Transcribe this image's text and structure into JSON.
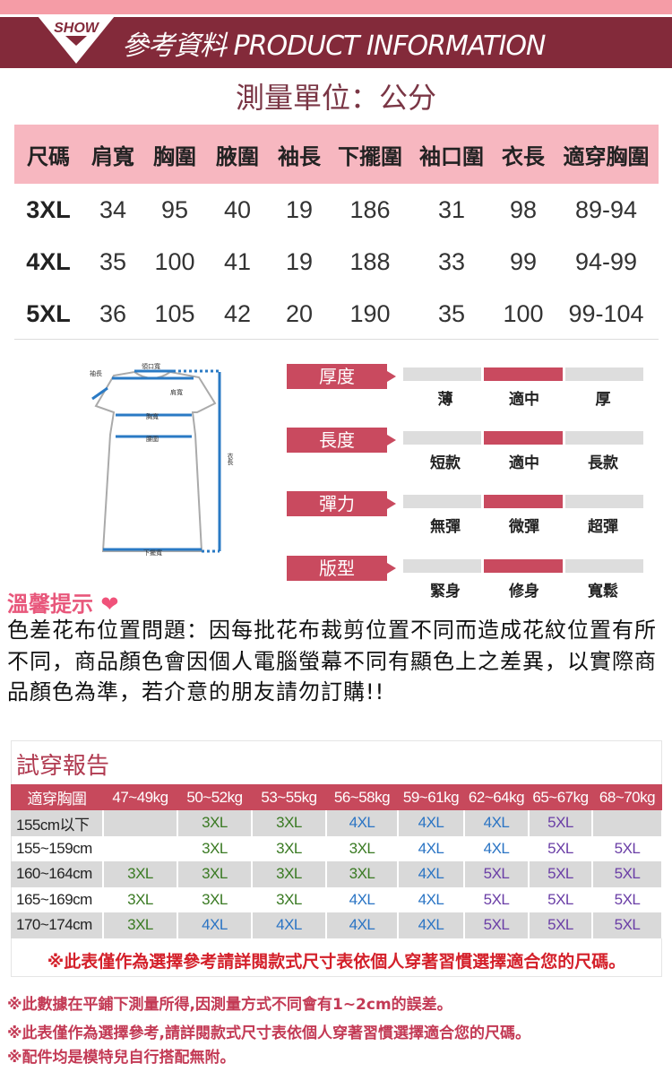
{
  "header": {
    "badge": "SHOW",
    "title": "參考資料 PRODUCT INFORMATION"
  },
  "unit": "測量單位：公分",
  "size_table": {
    "headers": [
      "尺碼",
      "肩寬",
      "胸圍",
      "腋圍",
      "袖長",
      "下擺圍",
      "袖口圍",
      "衣長",
      "適穿胸圍"
    ],
    "rows": [
      [
        "3XL",
        "34",
        "95",
        "40",
        "19",
        "186",
        "31",
        "98",
        "89-94"
      ],
      [
        "4XL",
        "35",
        "100",
        "41",
        "19",
        "188",
        "33",
        "99",
        "94-99"
      ],
      [
        "5XL",
        "36",
        "105",
        "42",
        "20",
        "190",
        "35",
        "100",
        "99-104"
      ]
    ]
  },
  "diagram": {
    "labels": {
      "sleeve": "袖長",
      "neck": "領口寬",
      "shoulder": "肩寬",
      "chest": "胸寬",
      "waist": "腰圍",
      "length": "衣長",
      "hem": "下擺寬"
    }
  },
  "features": [
    {
      "label": "厚度",
      "options": [
        "薄",
        "適中",
        "厚"
      ],
      "selected": 1
    },
    {
      "label": "長度",
      "options": [
        "短款",
        "適中",
        "長款"
      ],
      "selected": 1
    },
    {
      "label": "彈力",
      "options": [
        "無彈",
        "微彈",
        "超彈"
      ],
      "selected": 1
    },
    {
      "label": "版型",
      "options": [
        "緊身",
        "修身",
        "寬鬆"
      ],
      "selected": 1
    }
  ],
  "tips": {
    "title": "溫馨提示",
    "icon": "heart-icon",
    "text": "色差花布位置問題：因每批花布裁剪位置不同而造成花紋位置有所不同，商品顏色會因個人電腦螢幕不同有顯色上之差異，以實際商品顏色為準，若介意的朋友請勿訂購!!"
  },
  "try_report": {
    "title": "試穿報告",
    "headers": [
      "適穿胸圍",
      "47~49kg",
      "50~52kg",
      "53~55kg",
      "56~58kg",
      "59~61kg",
      "62~64kg",
      "65~67kg",
      "68~70kg"
    ],
    "rows": [
      [
        "155cm以下",
        "",
        "3XL",
        "3XL",
        "4XL",
        "4XL",
        "4XL",
        "5XL",
        ""
      ],
      [
        "155~159cm",
        "",
        "3XL",
        "3XL",
        "3XL",
        "4XL",
        "4XL",
        "5XL",
        "5XL"
      ],
      [
        "160~164cm",
        "3XL",
        "3XL",
        "3XL",
        "3XL",
        "4XL",
        "5XL",
        "5XL",
        "5XL"
      ],
      [
        "165~169cm",
        "3XL",
        "3XL",
        "3XL",
        "4XL",
        "4XL",
        "5XL",
        "5XL",
        "5XL"
      ],
      [
        "170~174cm",
        "3XL",
        "4XL",
        "4XL",
        "4XL",
        "4XL",
        "5XL",
        "5XL",
        "5XL"
      ]
    ],
    "note": "※此表僅作為選擇參考請詳閱款式尺寸表依個人穿著習慣選擇適合您的尺碼。"
  },
  "footnotes": [
    "※此數據在平鋪下測量所得,因測量方式不同會有1~2cm的誤差。",
    "※此表僅作為選擇參考,請詳閱款式尺寸表依個人穿著習慣選擇適合您的尺碼。",
    "※配件均是模特兒自行搭配無附。"
  ],
  "colors": {
    "maroon": "#832a3a",
    "pink": "#f7b7c0",
    "accent": "#c94a5f",
    "size3": "#3a7a23",
    "size4": "#2a74c4",
    "size5": "#6a3ea6"
  }
}
